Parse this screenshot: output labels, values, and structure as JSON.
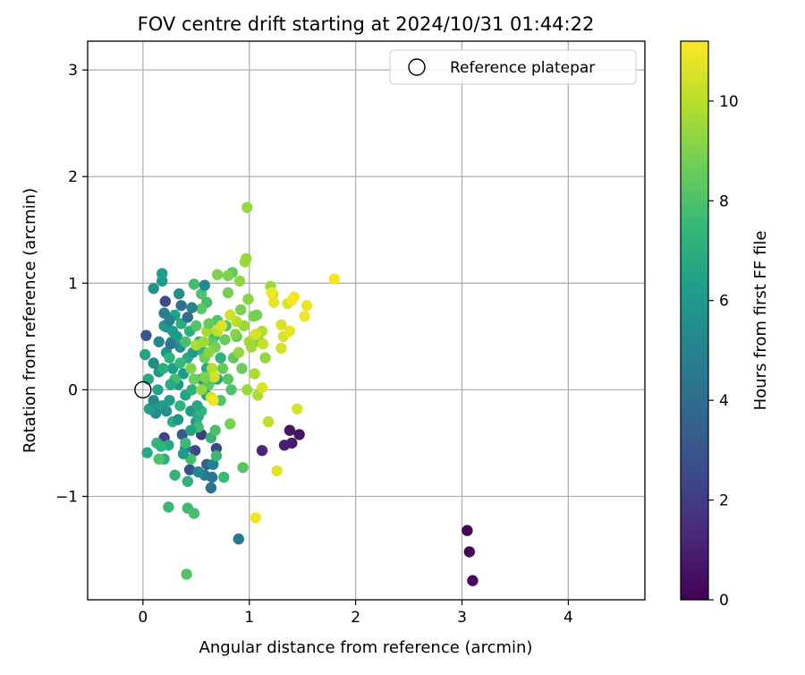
{
  "chart_data": {
    "type": "scatter",
    "title": "FOV centre drift starting at 2024/10/31 01:44:22",
    "xlabel": "Angular distance from reference (arcmin)",
    "ylabel": "Rotation from reference (arcmin)",
    "xlim": [
      -0.52,
      4.72
    ],
    "ylim": [
      -1.97,
      3.27
    ],
    "xticks": [
      0,
      1,
      2,
      3,
      4
    ],
    "yticks": [
      -1,
      0,
      1,
      2,
      3
    ],
    "xtick_labels": [
      "0",
      "1",
      "2",
      "3",
      "4"
    ],
    "ytick_labels": [
      "−1",
      "0",
      "1",
      "2",
      "3"
    ],
    "grid": true,
    "legend": {
      "placement": "upper-right",
      "entries": [
        {
          "label": "Reference platepar",
          "marker": "open-circle"
        }
      ]
    },
    "reference_point": {
      "x": 0,
      "y": 0
    },
    "colorbar": {
      "label": "Hours from first FF file",
      "range": [
        0,
        11.2
      ],
      "ticks": [
        0,
        2,
        4,
        6,
        8,
        10
      ],
      "tick_labels": [
        "0",
        "2",
        "4",
        "6",
        "8",
        "10"
      ],
      "colormap": [
        "#440154",
        "#482878",
        "#3e4989",
        "#31688e",
        "#26828e",
        "#1f9e89",
        "#35b779",
        "#6ece58",
        "#b5de2b",
        "#fde725"
      ]
    },
    "points": [
      [
        3.05,
        -1.32,
        0.1
      ],
      [
        3.07,
        -1.52,
        0.2
      ],
      [
        3.1,
        -1.79,
        0.3
      ],
      [
        1.47,
        -0.42,
        0.6
      ],
      [
        1.38,
        -0.38,
        0.7
      ],
      [
        1.4,
        -0.5,
        0.8
      ],
      [
        1.33,
        -0.52,
        1.0
      ],
      [
        1.12,
        -0.57,
        1.2
      ],
      [
        0.03,
        0.51,
        3.0
      ],
      [
        0.21,
        0.83,
        2.6
      ],
      [
        0.2,
        -0.45,
        2.2
      ],
      [
        0.44,
        -0.75,
        2.8
      ],
      [
        0.49,
        -0.57,
        2.5
      ],
      [
        0.55,
        -0.42,
        2.0
      ],
      [
        0.69,
        -0.55,
        2.4
      ],
      [
        0.37,
        -0.42,
        3.2
      ],
      [
        0.6,
        -0.7,
        3.4
      ],
      [
        0.9,
        -1.4,
        4.5
      ],
      [
        0.64,
        -0.92,
        4.2
      ],
      [
        0.58,
        -0.8,
        4.6
      ],
      [
        0.36,
        0.79,
        4.2
      ],
      [
        0.22,
        0.59,
        3.8
      ],
      [
        0.66,
        -0.7,
        5.0
      ],
      [
        0.4,
        -0.55,
        4.8
      ],
      [
        0.52,
        -0.77,
        5.2
      ],
      [
        0.65,
        -0.82,
        4.4
      ],
      [
        0.1,
        0.95,
        5.8
      ],
      [
        0.18,
        1.02,
        6.0
      ],
      [
        0.18,
        1.09,
        6.2
      ],
      [
        0.08,
        -0.17,
        5.6
      ],
      [
        0.12,
        -0.22,
        5.4
      ],
      [
        0.15,
        0.17,
        5.8
      ],
      [
        0.2,
        0.6,
        6.0
      ],
      [
        0.3,
        0.7,
        6.4
      ],
      [
        0.35,
        0.4,
        5.5
      ],
      [
        0.22,
        0.35,
        5.8
      ],
      [
        0.28,
        0.2,
        6.2
      ],
      [
        0.33,
        0.05,
        5.9
      ],
      [
        0.4,
        -0.05,
        6.5
      ],
      [
        0.45,
        -0.2,
        6.0
      ],
      [
        0.5,
        -0.3,
        5.8
      ],
      [
        0.55,
        0.1,
        6.2
      ],
      [
        0.6,
        0.2,
        6.6
      ],
      [
        0.42,
        0.3,
        6.8
      ],
      [
        0.38,
        0.15,
        6.0
      ],
      [
        0.25,
        -0.1,
        6.3
      ],
      [
        0.18,
        -0.15,
        6.1
      ],
      [
        0.27,
        0.45,
        6.5
      ],
      [
        0.32,
        0.5,
        6.0
      ],
      [
        0.47,
        0.35,
        6.2
      ],
      [
        0.15,
        0.45,
        5.2
      ],
      [
        0.25,
        0.65,
        5.0
      ],
      [
        0.1,
        0.25,
        5.5
      ],
      [
        0.06,
        -0.18,
        6.3
      ],
      [
        0.02,
        0.33,
        6.4
      ],
      [
        0.05,
        0.1,
        6.6
      ],
      [
        0.04,
        -0.59,
        6.8
      ],
      [
        0.24,
        -0.52,
        6.7
      ],
      [
        0.28,
        -0.3,
        6.9
      ],
      [
        0.52,
        -0.25,
        6.8
      ],
      [
        0.6,
        -0.05,
        6.4
      ],
      [
        0.7,
        0.1,
        6.7
      ],
      [
        0.53,
        0.45,
        6.9
      ],
      [
        0.44,
        0.55,
        7.0
      ],
      [
        0.35,
        -0.15,
        7.2
      ],
      [
        0.46,
        0.0,
        7.1
      ],
      [
        0.57,
        0.35,
        7.3
      ],
      [
        0.67,
        0.5,
        7.4
      ],
      [
        0.73,
        0.3,
        7.2
      ],
      [
        0.13,
        -0.5,
        7.4
      ],
      [
        0.17,
        -0.53,
        7.2
      ],
      [
        0.2,
        -0.65,
        7.0
      ],
      [
        0.3,
        -0.8,
        7.3
      ],
      [
        0.42,
        -0.86,
        7.1
      ],
      [
        0.76,
        -0.82,
        7.6
      ],
      [
        0.69,
        -0.62,
        7.5
      ],
      [
        0.64,
        -0.45,
        7.3
      ],
      [
        0.55,
        -0.2,
        7.4
      ],
      [
        0.68,
        -0.38,
        7.9
      ],
      [
        0.4,
        -0.5,
        7.6
      ],
      [
        0.52,
        -0.35,
        7.7
      ],
      [
        0.45,
        -0.65,
        7.8
      ],
      [
        0.24,
        -1.1,
        7.5
      ],
      [
        0.42,
        -1.11,
        7.6
      ],
      [
        0.48,
        -1.16,
        7.9
      ],
      [
        0.41,
        -1.73,
        8.1
      ],
      [
        0.15,
        -0.65,
        8.0
      ],
      [
        0.48,
        0.99,
        7.8
      ],
      [
        0.55,
        0.9,
        8.0
      ],
      [
        0.6,
        0.82,
        7.8
      ],
      [
        0.78,
        0.6,
        8.0
      ],
      [
        0.88,
        0.5,
        8.2
      ],
      [
        0.94,
        -0.73,
        8.2
      ],
      [
        0.82,
        -0.32,
        8.8
      ],
      [
        0.8,
        0.1,
        8.2
      ],
      [
        0.85,
        0.3,
        8.4
      ],
      [
        0.7,
        0.65,
        8.1
      ],
      [
        0.93,
        0.2,
        8.6
      ],
      [
        0.65,
        0.45,
        8.3
      ],
      [
        0.75,
        0.2,
        8.5
      ],
      [
        0.83,
        0.0,
        8.0
      ],
      [
        0.73,
        -0.1,
        8.1
      ],
      [
        0.62,
        0.05,
        8.3
      ],
      [
        0.58,
        0.3,
        8.7
      ],
      [
        0.68,
        0.4,
        8.9
      ],
      [
        0.77,
        0.47,
        8.6
      ],
      [
        0.8,
        0.91,
        8.8
      ],
      [
        0.84,
        1.1,
        8.5
      ],
      [
        0.8,
        1.07,
        9.0
      ],
      [
        0.92,
        0.75,
        8.9
      ],
      [
        0.99,
        0.85,
        9.2
      ],
      [
        0.91,
        1.02,
        9.3
      ],
      [
        0.87,
        0.52,
        9.1
      ],
      [
        0.96,
        1.2,
        9.6
      ],
      [
        0.97,
        1.23,
        9.5
      ],
      [
        0.98,
        1.71,
        9.4
      ],
      [
        0.7,
        1.08,
        9.0
      ],
      [
        1.04,
        0.69,
        9.0
      ],
      [
        1.07,
        0.7,
        8.8
      ],
      [
        1.1,
        0.45,
        9.2
      ],
      [
        1.15,
        0.3,
        9.4
      ],
      [
        1.2,
        0.97,
        9.5
      ],
      [
        1.22,
        0.9,
        9.7
      ],
      [
        0.95,
        0.6,
        9.4
      ],
      [
        1.02,
        0.4,
        9.6
      ],
      [
        1.05,
        0.15,
        9.8
      ],
      [
        0.98,
        0.0,
        9.5
      ],
      [
        1.08,
        -0.05,
        9.8
      ],
      [
        0.9,
        0.35,
        9.3
      ],
      [
        1.0,
        0.45,
        9.6
      ],
      [
        1.12,
        0.55,
        9.9
      ],
      [
        1.18,
        -0.3,
        10.1
      ],
      [
        1.13,
        0.43,
        10.3
      ],
      [
        1.06,
        0.52,
        10.5
      ],
      [
        1.12,
        0.02,
        10.6
      ],
      [
        1.26,
        -0.76,
        10.7
      ],
      [
        1.06,
        -1.2,
        11.0
      ],
      [
        1.23,
        0.82,
        10.8
      ],
      [
        1.36,
        0.81,
        10.6
      ],
      [
        1.42,
        0.87,
        10.9
      ],
      [
        1.4,
        0.84,
        11.1
      ],
      [
        1.3,
        0.61,
        10.5
      ],
      [
        1.32,
        0.5,
        10.6
      ],
      [
        1.38,
        0.55,
        10.8
      ],
      [
        1.3,
        0.39,
        10.4
      ],
      [
        1.52,
        0.69,
        11.0
      ],
      [
        1.54,
        0.79,
        10.9
      ],
      [
        1.8,
        1.04,
        11.1
      ],
      [
        1.45,
        -0.18,
        10.5
      ],
      [
        1.21,
        0.91,
        11.0
      ],
      [
        0.88,
        0.64,
        10.0
      ],
      [
        0.82,
        0.7,
        10.4
      ],
      [
        0.7,
        0.55,
        10.2
      ],
      [
        0.65,
        0.2,
        10.0
      ],
      [
        0.74,
        0.6,
        10.6
      ],
      [
        0.6,
        0.55,
        9.7
      ],
      [
        0.62,
        0.35,
        9.2
      ],
      [
        0.67,
        0.12,
        10.4
      ],
      [
        0.64,
        -0.07,
        10.5
      ],
      [
        0.66,
        -0.1,
        11.0
      ],
      [
        0.5,
        0.42,
        9.8
      ],
      [
        0.57,
        0.45,
        9.6
      ],
      [
        0.55,
        0.0,
        9.4
      ],
      [
        0.45,
        0.2,
        9.1
      ],
      [
        0.48,
        0.1,
        8.7
      ],
      [
        0.3,
        0.1,
        7.8
      ],
      [
        0.25,
        0.3,
        7.2
      ],
      [
        0.35,
        0.25,
        7.5
      ],
      [
        0.4,
        0.45,
        7.9
      ],
      [
        0.5,
        0.6,
        8.1
      ],
      [
        0.55,
        0.76,
        8.3
      ],
      [
        0.62,
        0.62,
        8.5
      ],
      [
        0.58,
        0.12,
        9.0
      ],
      [
        0.51,
        -0.15,
        6.7
      ],
      [
        0.45,
        -0.38,
        6.4
      ],
      [
        0.38,
        -0.6,
        6.1
      ],
      [
        0.33,
        -0.28,
        5.9
      ],
      [
        0.22,
        -0.2,
        5.7
      ],
      [
        0.26,
        0.05,
        6.8
      ],
      [
        0.19,
        0.2,
        7.0
      ],
      [
        0.14,
        0.0,
        6.5
      ],
      [
        0.1,
        -0.1,
        5.3
      ],
      [
        0.28,
        0.55,
        6.1
      ],
      [
        0.36,
        0.62,
        6.9
      ],
      [
        0.46,
        0.77,
        5.0
      ],
      [
        0.58,
        0.98,
        5.3
      ],
      [
        0.34,
        0.9,
        5.6
      ],
      [
        0.42,
        0.68,
        4.0
      ],
      [
        0.2,
        0.72,
        4.7
      ],
      [
        0.26,
        0.43,
        4.5
      ]
    ]
  }
}
